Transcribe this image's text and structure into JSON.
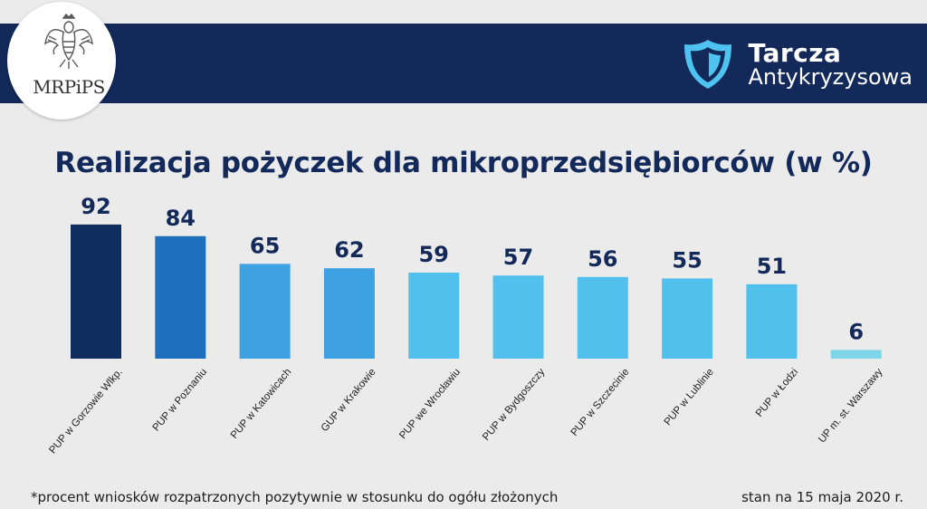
{
  "header": {
    "logo_text": "MRPiPS",
    "brand_title": "Tarcza",
    "brand_subtitle": "Antykryzysowa"
  },
  "chart_data": {
    "type": "bar",
    "title": "Realizacja pożyczek dla mikroprzedsiębiorców (w %)",
    "categories": [
      "PUP w Gorzowie Wlkp.",
      "PUP w Poznaniu",
      "PUP w Katowicach",
      "GUP w Krakowie",
      "PUP we Wrocławiu",
      "PUP w Bydgoszczy",
      "PUP w Szczecinie",
      "PUP w Lublinie",
      "PUP w Łodzi",
      "UP m. st. Warszawy"
    ],
    "values": [
      92,
      84,
      65,
      62,
      59,
      57,
      56,
      55,
      51,
      6
    ],
    "colors": [
      "#0f2d5e",
      "#1f6fbf",
      "#3ea2e2",
      "#3ea2e2",
      "#51c0ec",
      "#51c0ec",
      "#51c0ec",
      "#51c0ec",
      "#51c0ec",
      "#7fd6e9"
    ],
    "value_label_color": "#12295a",
    "ylim": [
      0,
      100
    ],
    "grid": false,
    "legend": "none"
  },
  "footnote": "*procent wniosków rozpatrzonych pozytywnie w stosunku do ogółu złożonych",
  "date_note": "stan na 15 maja 2020 r."
}
